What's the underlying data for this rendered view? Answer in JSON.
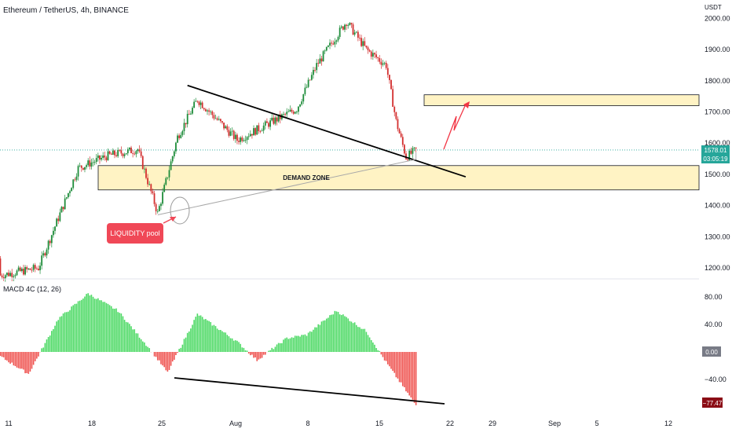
{
  "header": {
    "title": "Ethereum / TetherUS, 4h, BINANCE",
    "currency": "USDT"
  },
  "price_badge": {
    "price": "1578.01",
    "countdown": "03:05:19",
    "color": "#26a69a"
  },
  "annotations": {
    "demand_zone": "DEMAND ZONE",
    "liquidity_pool": "LIQUIDITY  pool",
    "demand_zone_color": "#fff3c4",
    "liquidity_color": "#f04857"
  },
  "macd": {
    "title": "MACD 4C (12, 26)",
    "current_value": "−77.47",
    "zero_label": "0.00",
    "positive_color": "#4cd964",
    "negative_color": "#ef5350"
  },
  "colors": {
    "up": "#26a69a",
    "down": "#ef5350",
    "up_dark": "#1e7f3a",
    "down_dark": "#b71c1c",
    "resistance_line": "#f0b90b"
  },
  "chart_data": [
    {
      "type": "candlestick",
      "title": "Ethereum / TetherUS, 4h, BINANCE",
      "ylabel": "USDT",
      "ylim": [
        1160,
        2050
      ],
      "yticks": [
        1200,
        1300,
        1400,
        1500,
        1600,
        1700,
        1800,
        1900,
        2000
      ],
      "ytick_labels": [
        "1200.00",
        "1300.00",
        "1400.00",
        "1500.00",
        "1600.00",
        "1700.00",
        "1800.00",
        "1900.00",
        "2000.00"
      ],
      "xticks": [
        "11",
        "18",
        "25",
        "Aug",
        "8",
        "15",
        "22",
        "29",
        "Sep",
        "5",
        "12"
      ],
      "last_price": 1578.01,
      "key_points": [
        {
          "x": "Jul 08",
          "y": 1230
        },
        {
          "x": "Jul 10",
          "y": 1175
        },
        {
          "x": "Jul 14",
          "y": 1200
        },
        {
          "x": "Jul 18",
          "y": 1520
        },
        {
          "x": "Jul 21",
          "y": 1560
        },
        {
          "x": "Jul 24",
          "y": 1580
        },
        {
          "x": "Jul 26",
          "y": 1375
        },
        {
          "x": "Jul 28",
          "y": 1620
        },
        {
          "x": "Jul 30",
          "y": 1740
        },
        {
          "x": "Aug 03",
          "y": 1610
        },
        {
          "x": "Aug 06",
          "y": 1660
        },
        {
          "x": "Aug 09",
          "y": 1710
        },
        {
          "x": "Aug 11",
          "y": 1850
        },
        {
          "x": "Aug 14",
          "y": 1990
        },
        {
          "x": "Aug 16",
          "y": 1900
        },
        {
          "x": "Aug 18",
          "y": 1850
        },
        {
          "x": "Aug 19",
          "y": 1670
        },
        {
          "x": "Aug 20",
          "y": 1555
        },
        {
          "x": "Aug 21",
          "y": 1578
        }
      ],
      "zones": [
        {
          "label": "DEMAND ZONE",
          "from": 1450,
          "to": 1528
        },
        {
          "label": "",
          "from": 1720,
          "to": 1755
        }
      ],
      "trendlines": [
        {
          "from": {
            "x": "Jul 29",
            "y": 1785
          },
          "to": {
            "x": "Aug 26",
            "y": 1492
          }
        },
        {
          "from": {
            "x": "Jul 26",
            "y": 1370
          },
          "to": {
            "x": "Aug 21",
            "y": 1548
          }
        }
      ]
    },
    {
      "type": "histogram",
      "title": "MACD 4C (12, 26)",
      "ylim": [
        -90,
        100
      ],
      "yticks": [
        80,
        40,
        0,
        -40
      ],
      "ytick_labels": [
        "80.00",
        "40.00",
        "0.00",
        "−40.00"
      ],
      "last_value": -77.47,
      "key_points": [
        {
          "x": "Jul 08",
          "y": 20
        },
        {
          "x": "Jul 10",
          "y": -5
        },
        {
          "x": "Jul 13",
          "y": -32
        },
        {
          "x": "Jul 16",
          "y": 48
        },
        {
          "x": "Jul 19",
          "y": 85
        },
        {
          "x": "Jul 22",
          "y": 60
        },
        {
          "x": "Jul 25",
          "y": 8
        },
        {
          "x": "Jul 27",
          "y": -30
        },
        {
          "x": "Jul 30",
          "y": 55
        },
        {
          "x": "Aug 03",
          "y": 15
        },
        {
          "x": "Aug 05",
          "y": -12
        },
        {
          "x": "Aug 08",
          "y": 20
        },
        {
          "x": "Aug 10",
          "y": 25
        },
        {
          "x": "Aug 13",
          "y": 60
        },
        {
          "x": "Aug 16",
          "y": 30
        },
        {
          "x": "Aug 18",
          "y": -15
        },
        {
          "x": "Aug 21",
          "y": -77.47
        }
      ]
    }
  ]
}
